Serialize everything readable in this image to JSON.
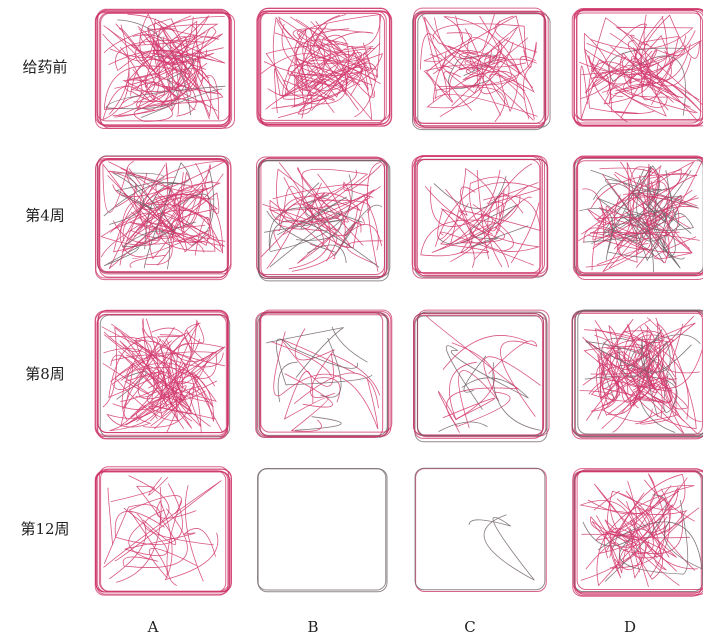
{
  "rows": [
    "给药前",
    "第4周",
    "第8周",
    "第12周"
  ],
  "columns": [
    "A",
    "B",
    "C",
    "D"
  ]
}
